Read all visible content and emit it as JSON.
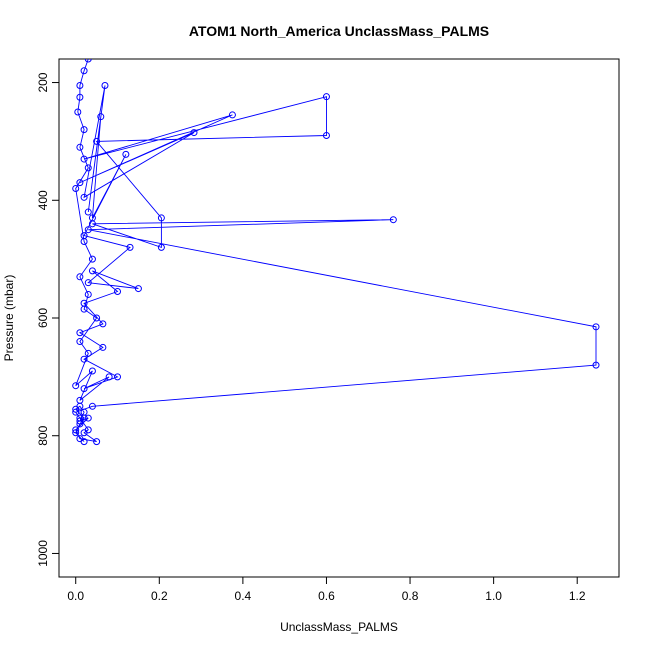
{
  "chart_data": {
    "type": "line",
    "title": "ATOM1 North_America UnclassMass_PALMS",
    "xlabel": "UnclassMass_PALMS",
    "ylabel": "Pressure (mbar)",
    "xlim": [
      -0.04,
      1.3
    ],
    "ylim": [
      1040,
      160
    ],
    "y_reversed": true,
    "x_ticks": [
      0.0,
      0.2,
      0.4,
      0.6,
      0.8,
      1.0,
      1.2
    ],
    "x_tick_labels": [
      "0.0",
      "0.2",
      "0.4",
      "0.6",
      "0.8",
      "1.0",
      "1.2"
    ],
    "y_ticks": [
      200,
      400,
      600,
      800,
      1000
    ],
    "y_tick_labels": [
      "200",
      "400",
      "600",
      "800",
      "1000"
    ],
    "grid": false,
    "series": [
      {
        "color": "#0000ff",
        "marker": "open-circle",
        "points": [
          [
            0.02,
            810
          ],
          [
            0.0,
            795
          ],
          [
            0.01,
            780
          ],
          [
            0.02,
            770
          ],
          [
            0.0,
            755
          ],
          [
            0.01,
            750
          ],
          [
            0.02,
            760
          ],
          [
            0.01,
            775
          ],
          [
            0.03,
            770
          ],
          [
            0.0,
            790
          ],
          [
            0.01,
            805
          ],
          [
            0.05,
            810
          ],
          [
            0.02,
            795
          ],
          [
            0.03,
            790
          ],
          [
            0.01,
            770
          ],
          [
            0.0,
            760
          ],
          [
            0.04,
            750
          ],
          [
            1.245,
            680
          ],
          [
            1.245,
            615
          ],
          [
            0.03,
            450
          ],
          [
            0.76,
            433
          ],
          [
            0.04,
            440
          ],
          [
            0.205,
            480
          ],
          [
            0.205,
            430
          ],
          [
            0.05,
            300
          ],
          [
            0.6,
            290
          ],
          [
            0.6,
            224
          ],
          [
            0.02,
            330
          ],
          [
            0.375,
            255
          ],
          [
            0.01,
            370
          ],
          [
            0.283,
            285
          ],
          [
            0.02,
            395
          ],
          [
            0.07,
            205
          ],
          [
            0.03,
            420
          ],
          [
            0.06,
            258
          ],
          [
            0.04,
            430
          ],
          [
            0.12,
            322
          ],
          [
            0.02,
            460
          ],
          [
            0.13,
            480
          ],
          [
            0.03,
            540
          ],
          [
            0.15,
            550
          ],
          [
            0.04,
            520
          ],
          [
            0.1,
            555
          ],
          [
            0.02,
            575
          ],
          [
            0.065,
            610
          ],
          [
            0.01,
            625
          ],
          [
            0.065,
            650
          ],
          [
            0.02,
            670
          ],
          [
            0.1,
            700
          ],
          [
            0.02,
            720
          ],
          [
            0.08,
            700
          ],
          [
            0.01,
            740
          ],
          [
            0.04,
            690
          ],
          [
            0.0,
            715
          ],
          [
            0.03,
            660
          ],
          [
            0.01,
            640
          ],
          [
            0.05,
            600
          ],
          [
            0.02,
            585
          ],
          [
            0.03,
            560
          ],
          [
            0.01,
            530
          ],
          [
            0.04,
            500
          ],
          [
            0.02,
            470
          ],
          [
            0.0,
            380
          ],
          [
            0.03,
            345
          ],
          [
            0.01,
            310
          ],
          [
            0.02,
            280
          ],
          [
            0.005,
            250
          ],
          [
            0.01,
            225
          ],
          [
            0.01,
            205
          ],
          [
            0.02,
            180
          ],
          [
            0.03,
            160
          ],
          [
            0.04,
            140
          ]
        ]
      }
    ]
  }
}
